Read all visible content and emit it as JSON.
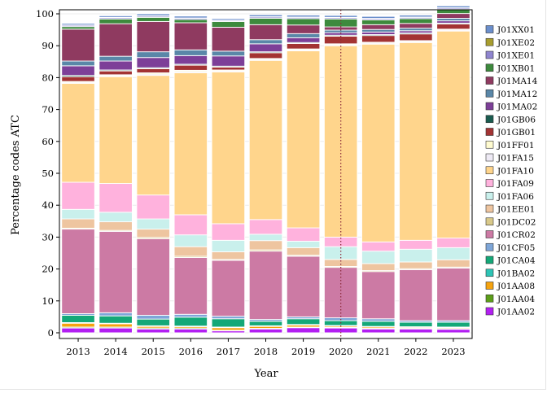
{
  "chart_data": {
    "type": "bar",
    "stacked": true,
    "xlabel": "Year",
    "ylabel": "Percentage codes ATC",
    "ylim": [
      0,
      100
    ],
    "yticks": [
      0,
      10,
      20,
      30,
      40,
      50,
      60,
      70,
      80,
      90,
      100
    ],
    "categories": [
      "2013",
      "2014",
      "2015",
      "2016",
      "2017",
      "2018",
      "2019",
      "2020",
      "2021",
      "2022",
      "2023"
    ],
    "vline": {
      "category": "2020",
      "style": "dotted",
      "color": "#8b2a3a"
    },
    "legend_position": "right",
    "series": [
      {
        "name": "J01AA02",
        "color": "#b21ff2",
        "values": [
          1.5,
          1.5,
          1.2,
          1.2,
          0.6,
          1.2,
          1.6,
          1.5,
          1.2,
          1.2,
          1.1
        ]
      },
      {
        "name": "J01AA04",
        "color": "#5c9e19",
        "values": [
          0.3,
          0.3,
          0.3,
          0.3,
          0.2,
          0.2,
          0.2,
          0.2,
          0.2,
          0.2,
          0.2
        ]
      },
      {
        "name": "J01AA08",
        "color": "#f5a30f",
        "values": [
          1.2,
          1.0,
          0.5,
          0.4,
          0.8,
          0.6,
          0.6,
          0.4,
          0.4,
          0.3,
          0.3
        ]
      },
      {
        "name": "J01BA02",
        "color": "#2ec4b6",
        "values": [
          0.2,
          0.2,
          0.2,
          0.2,
          0.2,
          0.2,
          0.2,
          0.2,
          0.2,
          0.2,
          0.2
        ]
      },
      {
        "name": "J01CA04",
        "color": "#14a878",
        "values": [
          2.3,
          2.3,
          2.1,
          2.8,
          2.6,
          1.4,
          1.8,
          1.5,
          1.6,
          1.4,
          1.5
        ]
      },
      {
        "name": "J01CF05",
        "color": "#7ea6d8",
        "values": [
          0.5,
          1.0,
          1.2,
          0.9,
          0.8,
          0.6,
          0.6,
          0.9,
          0.8,
          0.5,
          0.5
        ]
      },
      {
        "name": "J01CR02",
        "color": "#cc7aa4",
        "values": [
          26.5,
          25.5,
          24.0,
          17.8,
          17.5,
          21.4,
          19.0,
          15.8,
          14.8,
          16.0,
          16.5
        ]
      },
      {
        "name": "J01DC02",
        "color": "#d9c98a",
        "values": [
          0.3,
          0.3,
          0.4,
          0.4,
          0.3,
          0.4,
          0.3,
          0.3,
          0.3,
          0.3,
          0.3
        ]
      },
      {
        "name": "J01EE01",
        "color": "#eec5a0",
        "values": [
          2.9,
          2.7,
          2.6,
          3.0,
          2.4,
          2.9,
          2.4,
          2.2,
          2.2,
          2.1,
          2.3
        ]
      },
      {
        "name": "J01FA06",
        "color": "#c9f0ec",
        "values": [
          3.0,
          3.0,
          3.2,
          3.7,
          3.6,
          2.0,
          2.0,
          4.0,
          3.9,
          4.0,
          3.8
        ]
      },
      {
        "name": "J01FA09",
        "color": "#ffb2dd",
        "values": [
          8.5,
          9.0,
          7.5,
          6.3,
          5.2,
          4.6,
          4.2,
          3.0,
          2.9,
          2.8,
          3.0
        ]
      },
      {
        "name": "J01FA10",
        "color": "#ffd58c",
        "values": [
          31.0,
          33.5,
          37.5,
          44.5,
          47.6,
          49.9,
          55.5,
          60.0,
          62.0,
          62.0,
          64.9
        ]
      },
      {
        "name": "J01FA15",
        "color": "#eeeaf5",
        "values": [
          0.3,
          0.3,
          0.4,
          0.4,
          0.3,
          0.3,
          0.3,
          0.3,
          0.3,
          0.3,
          0.3
        ]
      },
      {
        "name": "J01FF01",
        "color": "#fffbd0",
        "values": [
          0.3,
          0.3,
          0.4,
          0.4,
          0.3,
          0.3,
          0.3,
          0.3,
          0.3,
          0.3,
          0.3
        ]
      },
      {
        "name": "J01GB01",
        "color": "#a33333",
        "values": [
          1.5,
          1.2,
          1.3,
          1.6,
          0.9,
          1.8,
          1.7,
          2.4,
          2.1,
          2.1,
          1.6
        ]
      },
      {
        "name": "J01GB06",
        "color": "#1a5c4f",
        "values": [
          0.4,
          0.3,
          0.3,
          0.3,
          0.3,
          0.3,
          0.3,
          0.3,
          0.3,
          0.3,
          0.3
        ]
      },
      {
        "name": "J01MA02",
        "color": "#7d3f98",
        "values": [
          3.0,
          2.8,
          3.2,
          2.7,
          3.2,
          2.5,
          1.5,
          0.8,
          0.8,
          0.7,
          0.7
        ]
      },
      {
        "name": "J01MA12",
        "color": "#5a87a8",
        "values": [
          1.5,
          1.5,
          1.8,
          1.8,
          1.5,
          1.3,
          1.3,
          0.8,
          0.8,
          0.8,
          0.8
        ]
      },
      {
        "name": "J01MA14",
        "color": "#8f3a60",
        "values": [
          10.0,
          10.2,
          9.5,
          8.5,
          7.5,
          4.7,
          2.7,
          1.0,
          1.5,
          1.5,
          1.5
        ]
      },
      {
        "name": "J01XB01",
        "color": "#3d8a3d",
        "values": [
          0.8,
          1.5,
          1.3,
          1.0,
          1.8,
          2.0,
          2.0,
          2.5,
          1.5,
          1.5,
          1.3
        ]
      },
      {
        "name": "J01XE01",
        "color": "#8f85cf",
        "values": [
          0.4,
          0.4,
          0.4,
          0.4,
          0.3,
          0.4,
          0.4,
          0.4,
          0.4,
          0.4,
          0.4
        ]
      },
      {
        "name": "J01XE02",
        "color": "#a89d2e",
        "values": [
          0.1,
          0.1,
          0.1,
          0.1,
          0.1,
          0.1,
          0.1,
          0.1,
          0.1,
          0.1,
          0.1
        ]
      },
      {
        "name": "J01XX01",
        "color": "#6b8fcc",
        "values": [
          0.5,
          0.5,
          0.6,
          0.6,
          0.5,
          0.6,
          0.6,
          0.6,
          0.6,
          0.6,
          0.6
        ]
      }
    ]
  }
}
